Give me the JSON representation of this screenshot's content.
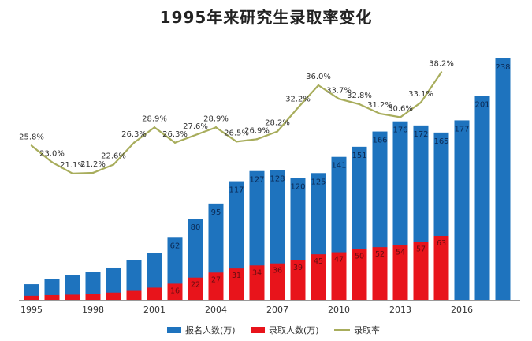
{
  "chart_data": {
    "type": "bar",
    "title": "1995年来研究生录取率变化",
    "years": [
      1995,
      1996,
      1997,
      1998,
      1999,
      2000,
      2001,
      2002,
      2003,
      2004,
      2005,
      2006,
      2007,
      2008,
      2009,
      2010,
      2011,
      2012,
      2013,
      2014,
      2015,
      2016,
      2017,
      2018
    ],
    "x_tick_labels": [
      "1995",
      "1998",
      "2001",
      "2004",
      "2007",
      "2010",
      "2013",
      "2016"
    ],
    "series": [
      {
        "name": "报名人数(万)",
        "color": "#1e73be",
        "values": [
          15.5,
          20.4,
          24.2,
          27.4,
          31.9,
          39.2,
          46.0,
          62,
          80,
          95,
          117,
          127,
          128,
          120,
          125,
          141,
          151,
          166,
          176,
          172,
          165,
          177,
          201,
          238
        ],
        "labels": [
          "",
          "",
          "",
          "",
          "",
          "",
          "",
          "62",
          "80",
          "95",
          "117",
          "127",
          "128",
          "120",
          "125",
          "141",
          "151",
          "166",
          "176",
          "172",
          "165",
          "177",
          "201",
          "238"
        ]
      },
      {
        "name": "录取人数(万)",
        "color": "#e8141b",
        "values": [
          4,
          4.7,
          5.1,
          5.8,
          7.2,
          8.9,
          12.1,
          16,
          22,
          27,
          31,
          34,
          36,
          39,
          45,
          47,
          50,
          52,
          54,
          57,
          63,
          null,
          null,
          null
        ],
        "labels": [
          "",
          "",
          "",
          "",
          "",
          "",
          "",
          "16",
          "22",
          "27",
          "31",
          "34",
          "36",
          "39",
          "45",
          "47",
          "50",
          "52",
          "54",
          "57",
          "63",
          "",
          "",
          ""
        ]
      }
    ],
    "rate": {
      "name": "录取率",
      "color": "#a8ad5c",
      "values": [
        25.8,
        23.0,
        21.1,
        21.2,
        22.6,
        26.3,
        28.9,
        26.3,
        27.6,
        28.9,
        26.5,
        26.9,
        28.2,
        32.2,
        36.0,
        33.7,
        32.8,
        31.2,
        30.6,
        33.1,
        38.2
      ],
      "labels": [
        "25.8%",
        "23.0%",
        "21.1%",
        "21.2%",
        "22.6%",
        "26.3%",
        "28.9%",
        "26.3%",
        "27.6%",
        "28.9%",
        "26.5%",
        "26.9%",
        "28.2%",
        "32.2%",
        "36.0%",
        "33.7%",
        "32.8%",
        "31.2%",
        "30.6%",
        "33.1%",
        "38.2%"
      ]
    },
    "ylim_count": [
      0,
      245
    ],
    "ylim_rate": [
      0,
      40
    ],
    "legend": [
      "报名人数(万)",
      "录取人数(万)",
      "录取率"
    ],
    "legend_position": "bottom",
    "grid": false
  }
}
